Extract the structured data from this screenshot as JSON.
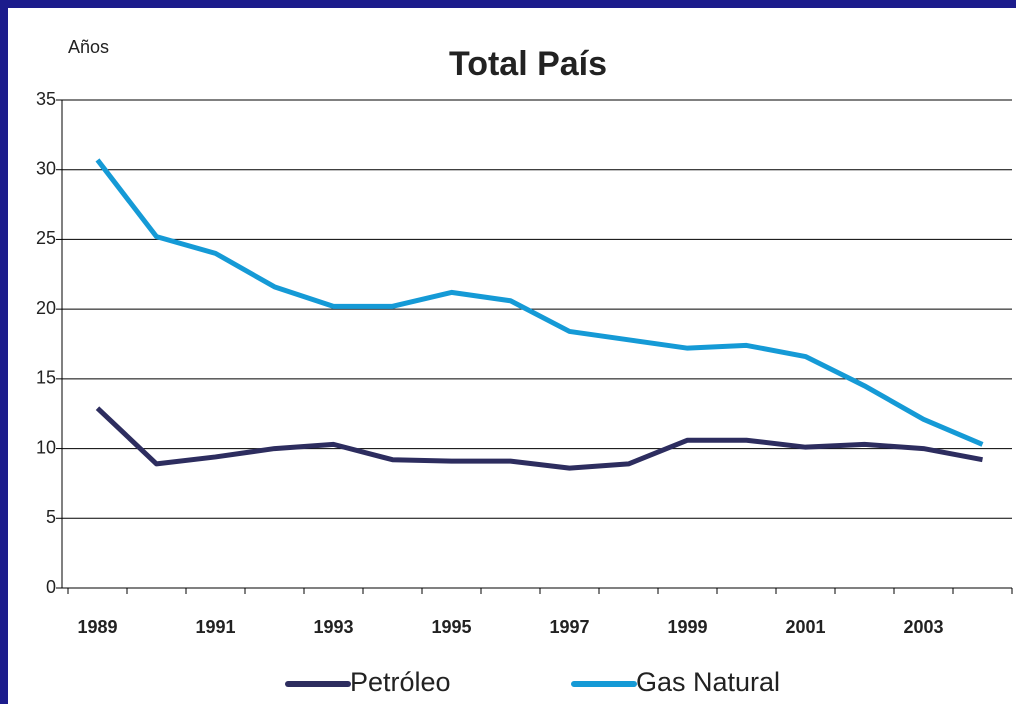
{
  "chart_data": {
    "type": "line",
    "title": "Total País",
    "ylabel": "Años",
    "categories": [
      "1989",
      null,
      "1991",
      null,
      "1993",
      null,
      "1995",
      null,
      "1997",
      null,
      "1999",
      null,
      "2001",
      null,
      "2003",
      null
    ],
    "series": [
      {
        "name": "Petróleo",
        "color": "#2d2d5f",
        "values": [
          12.9,
          8.9,
          9.4,
          10.0,
          10.3,
          9.2,
          9.1,
          9.1,
          8.6,
          8.9,
          10.6,
          10.6,
          10.1,
          10.3,
          10.0,
          9.2
        ]
      },
      {
        "name": "Gas Natural",
        "color": "#159ad6",
        "values": [
          30.7,
          25.2,
          24.0,
          21.6,
          20.2,
          20.2,
          21.2,
          20.6,
          18.4,
          17.8,
          17.2,
          17.4,
          16.6,
          14.5,
          12.1,
          10.3
        ]
      }
    ],
    "ylim": [
      0,
      35
    ],
    "yticks": [
      0,
      5,
      10,
      15,
      20,
      25,
      30,
      35
    ],
    "grid": true,
    "legend": "bottom"
  }
}
